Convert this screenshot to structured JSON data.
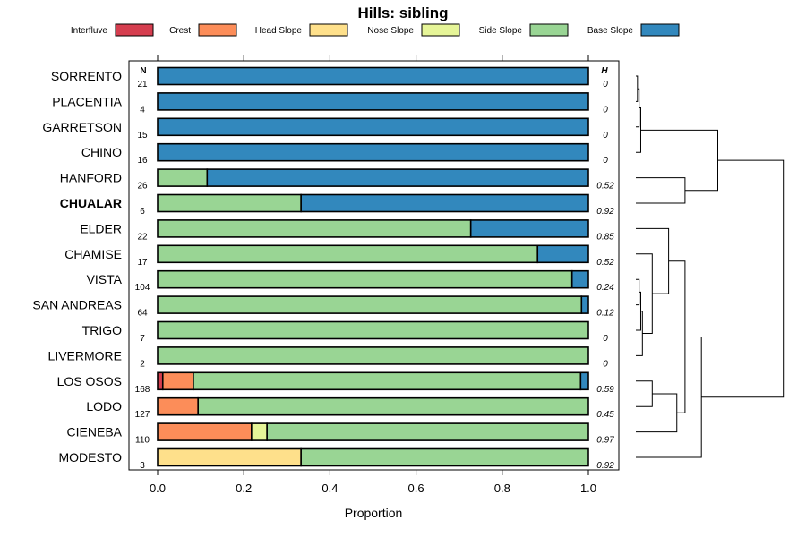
{
  "chart_data": {
    "type": "bar",
    "orientation": "horizontal",
    "stacked": true,
    "title": "Hills: sibling",
    "xlabel": "Proportion",
    "ylabel": "",
    "xlim": [
      0,
      1
    ],
    "x_ticks": [
      "0.0",
      "0.2",
      "0.4",
      "0.6",
      "0.8",
      "1.0"
    ],
    "x_tick_values": [
      0,
      0.2,
      0.4,
      0.6,
      0.8,
      1.0
    ],
    "n_header": "N",
    "h_header": "H",
    "legend_position": "top",
    "series": [
      {
        "name": "Interfluve",
        "color": "#d53e4f"
      },
      {
        "name": "Crest",
        "color": "#fc8d59"
      },
      {
        "name": "Head Slope",
        "color": "#fee08b"
      },
      {
        "name": "Nose Slope",
        "color": "#e6f598"
      },
      {
        "name": "Side Slope",
        "color": "#99d594"
      },
      {
        "name": "Base Slope",
        "color": "#3288bd"
      }
    ],
    "categories": [
      "SORRENTO",
      "PLACENTIA",
      "GARRETSON",
      "CHINO",
      "HANFORD",
      "CHUALAR",
      "ELDER",
      "CHAMISE",
      "VISTA",
      "SAN ANDREAS",
      "TRIGO",
      "LIVERMORE",
      "LOS OSOS",
      "LODO",
      "CIENEBA",
      "MODESTO"
    ],
    "highlight": "CHUALAR",
    "n": [
      "21",
      "4",
      "15",
      "16",
      "26",
      "6",
      "22",
      "17",
      "104",
      "64",
      "7",
      "2",
      "168",
      "127",
      "110",
      "3"
    ],
    "h": [
      "0",
      "0",
      "0",
      "0",
      "0.52",
      "0.92",
      "0.85",
      "0.52",
      "0.24",
      "0.12",
      "0",
      "0",
      "0.59",
      "0.45",
      "0.97",
      "0.92"
    ],
    "values": [
      [
        0,
        0,
        0,
        0,
        0,
        1
      ],
      [
        0,
        0,
        0,
        0,
        0,
        1
      ],
      [
        0,
        0,
        0,
        0,
        0,
        1
      ],
      [
        0,
        0,
        0,
        0,
        0,
        1
      ],
      [
        0,
        0,
        0,
        0,
        0.115,
        0.885
      ],
      [
        0,
        0,
        0,
        0,
        0.333,
        0.667
      ],
      [
        0,
        0,
        0,
        0,
        0.727,
        0.273
      ],
      [
        0,
        0,
        0,
        0,
        0.882,
        0.118
      ],
      [
        0,
        0,
        0,
        0,
        0.962,
        0.038
      ],
      [
        0,
        0,
        0,
        0,
        0.984,
        0.016
      ],
      [
        0,
        0,
        0,
        0,
        1,
        0
      ],
      [
        0,
        0,
        0,
        0,
        1,
        0
      ],
      [
        0.012,
        0.071,
        0,
        0,
        0.899,
        0.018
      ],
      [
        0,
        0.094,
        0,
        0,
        0.906,
        0
      ],
      [
        0,
        0.218,
        0,
        0.036,
        0.746,
        0
      ],
      [
        0,
        0,
        0.333,
        0,
        0.667,
        0
      ]
    ],
    "dendrogram": {
      "note": "hierarchical clustering tree drawn to the right of the rows",
      "merges": [
        [
          0,
          1,
          0.01
        ],
        [
          16,
          2,
          0.02
        ],
        [
          17,
          3,
          0.03
        ],
        [
          8,
          9,
          0.02
        ],
        [
          19,
          10,
          0.03
        ],
        [
          20,
          11,
          0.04
        ],
        [
          7,
          21,
          0.1
        ],
        [
          6,
          22,
          0.2
        ],
        [
          12,
          13,
          0.1
        ],
        [
          24,
          14,
          0.25
        ],
        [
          23,
          25,
          0.3
        ],
        [
          26,
          15,
          0.4
        ],
        [
          4,
          5,
          0.3
        ],
        [
          18,
          28,
          0.5
        ],
        [
          27,
          29,
          0.9
        ]
      ]
    }
  }
}
